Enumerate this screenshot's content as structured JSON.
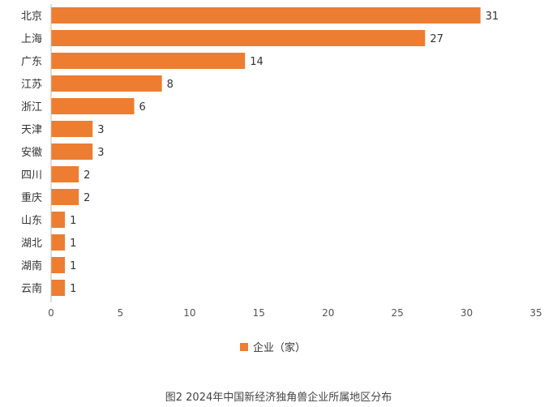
{
  "colors": {
    "bar": "#ED7D31",
    "axis": "#BFBFBF"
  },
  "chart_data": {
    "type": "bar",
    "orientation": "horizontal",
    "categories": [
      "北京",
      "上海",
      "广东",
      "江苏",
      "浙江",
      "天津",
      "安徽",
      "四川",
      "重庆",
      "山东",
      "湖北",
      "湖南",
      "云南"
    ],
    "series": [
      {
        "name": "企业（家）",
        "values": [
          31,
          27,
          14,
          8,
          6,
          3,
          3,
          2,
          2,
          1,
          1,
          1,
          1
        ]
      }
    ],
    "xlim": [
      0,
      35
    ],
    "xticks": [
      "0",
      "5",
      "10",
      "15",
      "20",
      "25",
      "30",
      "35"
    ],
    "grid": false,
    "legend_position": "bottom"
  },
  "caption": "图2 2024年中国新经济独角兽企业所属地区分布"
}
